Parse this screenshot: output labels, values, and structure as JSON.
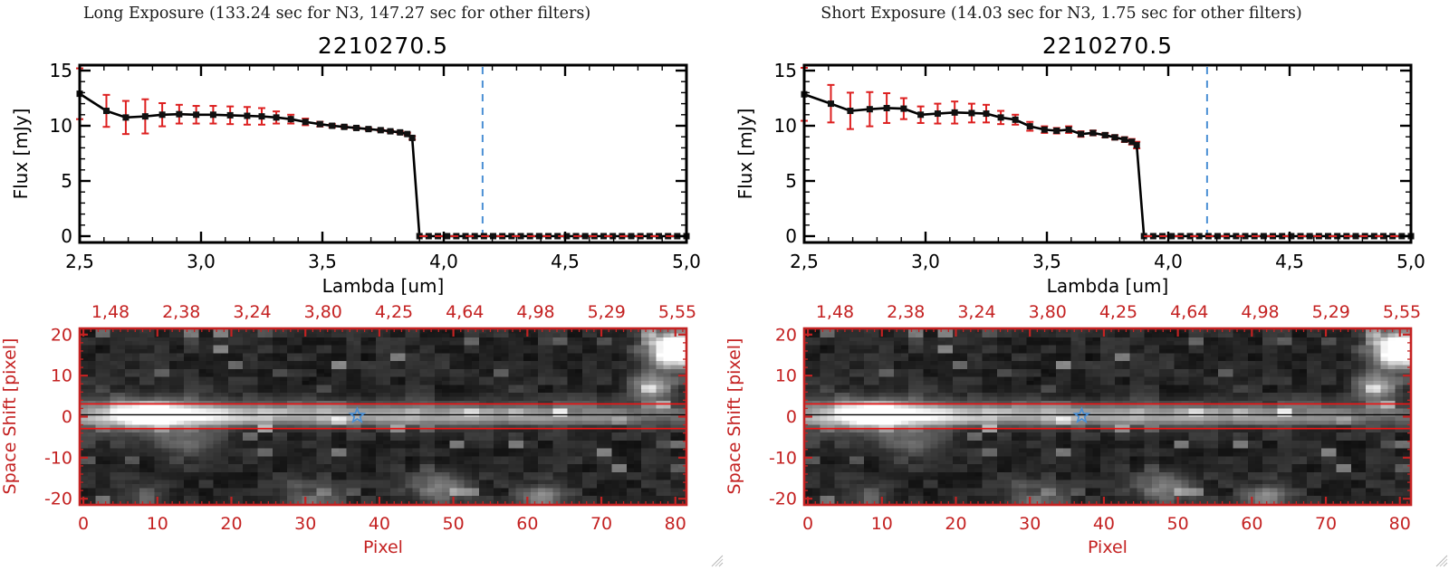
{
  "panels": [
    {
      "key": "long",
      "title": "Long Exposure (133.24 sec for N3, 147.27 sec for other filters)",
      "object_id": "2210270.5"
    },
    {
      "key": "short",
      "title": "Short Exposure (14.03 sec for N3, 1.75 sec for other filters)",
      "object_id": "2210270.5"
    }
  ],
  "colors": {
    "background": "#ffffff",
    "frame_black": "#000000",
    "data_line": "#000000",
    "marker_black": "#111111",
    "error_bar_red": "#dd2020",
    "zero_dash_red": "#ee2222",
    "guide_blue": "#4a8fd4",
    "image_axis_red": "#c42222",
    "aperture_line_red": "#f01515",
    "trace_line_black": "#000000",
    "star_blue": "#4a8fd4",
    "title_text": "#1a1a1a",
    "grip_gray": "#b5b5b5"
  },
  "chart_data": [
    {
      "type": "line",
      "panel": "long",
      "title": "2210270.5",
      "xlabel": "Lambda [um]",
      "ylabel": "Flux [mJy]",
      "xlim": [
        2.5,
        5.0
      ],
      "ylim": [
        0,
        15
      ],
      "x_ticks": [
        2.5,
        3.0,
        3.5,
        4.0,
        4.5,
        5.0
      ],
      "x_tick_labels": [
        "2,5",
        "3,0",
        "3,5",
        "4,0",
        "4,5",
        "5,0"
      ],
      "y_ticks": [
        0,
        5,
        10,
        15
      ],
      "y_tick_labels": [
        "0",
        "5",
        "10",
        "15"
      ],
      "marker": "filled-square",
      "legend": "none",
      "grid": false,
      "guide_blue_dashed_x": 4.16,
      "zero_red_dashed_from_x": 3.9,
      "points": [
        [
          2.5,
          12.9,
          2.3
        ],
        [
          2.61,
          11.35,
          1.45
        ],
        [
          2.69,
          10.75,
          1.5
        ],
        [
          2.77,
          10.85,
          1.55
        ],
        [
          2.84,
          11.0,
          1.05
        ],
        [
          2.91,
          11.05,
          0.85
        ],
        [
          2.98,
          11.0,
          0.8
        ],
        [
          3.05,
          11.0,
          0.8
        ],
        [
          3.12,
          10.95,
          0.8
        ],
        [
          3.19,
          10.9,
          0.8
        ],
        [
          3.25,
          10.85,
          0.75
        ],
        [
          3.31,
          10.75,
          0.55
        ],
        [
          3.37,
          10.6,
          0.4
        ],
        [
          3.43,
          10.35,
          0.3
        ],
        [
          3.49,
          10.15,
          0.22
        ],
        [
          3.54,
          10.0,
          0.16
        ],
        [
          3.59,
          9.9,
          0.13
        ],
        [
          3.64,
          9.8,
          0.11
        ],
        [
          3.69,
          9.7,
          0.1
        ],
        [
          3.74,
          9.6,
          0.1
        ],
        [
          3.78,
          9.5,
          0.1
        ],
        [
          3.82,
          9.4,
          0.1
        ],
        [
          3.85,
          9.25,
          0.12
        ],
        [
          3.87,
          8.9,
          0.15
        ]
      ],
      "zero_run": {
        "from": 3.9,
        "to": 5.0,
        "count": 30,
        "flux": 0,
        "err": 0.05
      }
    },
    {
      "type": "line",
      "panel": "short",
      "title": "2210270.5",
      "xlabel": "Lambda [um]",
      "ylabel": "Flux [mJy]",
      "xlim": [
        2.5,
        5.0
      ],
      "ylim": [
        0,
        15
      ],
      "x_ticks": [
        2.5,
        3.0,
        3.5,
        4.0,
        4.5,
        5.0
      ],
      "x_tick_labels": [
        "2,5",
        "3,0",
        "3,5",
        "4,0",
        "4,5",
        "5,0"
      ],
      "y_ticks": [
        0,
        5,
        10,
        15
      ],
      "y_tick_labels": [
        "0",
        "5",
        "10",
        "15"
      ],
      "marker": "filled-square",
      "legend": "none",
      "grid": false,
      "guide_blue_dashed_x": 4.16,
      "zero_red_dashed_from_x": 3.9,
      "points": [
        [
          2.5,
          12.85,
          2.4
        ],
        [
          2.61,
          12.0,
          1.7
        ],
        [
          2.69,
          11.35,
          1.65
        ],
        [
          2.77,
          11.5,
          1.55
        ],
        [
          2.84,
          11.6,
          1.35
        ],
        [
          2.91,
          11.55,
          0.95
        ],
        [
          2.98,
          11.0,
          0.75
        ],
        [
          3.05,
          11.1,
          0.9
        ],
        [
          3.12,
          11.2,
          1.0
        ],
        [
          3.19,
          11.15,
          0.85
        ],
        [
          3.25,
          11.1,
          0.8
        ],
        [
          3.31,
          10.75,
          0.6
        ],
        [
          3.37,
          10.55,
          0.45
        ],
        [
          3.43,
          9.95,
          0.4
        ],
        [
          3.49,
          9.65,
          0.3
        ],
        [
          3.54,
          9.55,
          0.25
        ],
        [
          3.59,
          9.65,
          0.3
        ],
        [
          3.64,
          9.25,
          0.25
        ],
        [
          3.69,
          9.35,
          0.22
        ],
        [
          3.74,
          9.15,
          0.2
        ],
        [
          3.78,
          8.95,
          0.2
        ],
        [
          3.82,
          8.75,
          0.22
        ],
        [
          3.85,
          8.55,
          0.25
        ],
        [
          3.87,
          8.25,
          0.3
        ]
      ],
      "zero_run": {
        "from": 3.9,
        "to": 5.0,
        "count": 30,
        "flux": 0,
        "err": 0.05
      }
    },
    {
      "type": "heatmap",
      "panel": "both",
      "xlabel": "Pixel",
      "ylabel": "Space Shift [pixel]",
      "x_range": [
        -0.5,
        81.5
      ],
      "y_range": [
        -21.5,
        21.5
      ],
      "x_ticks": [
        0,
        10,
        20,
        30,
        40,
        50,
        60,
        70,
        80
      ],
      "x_tick_labels": [
        "0",
        "10",
        "20",
        "30",
        "40",
        "50",
        "60",
        "70",
        "80"
      ],
      "y_ticks": [
        20,
        10,
        0,
        -10,
        -20
      ],
      "y_tick_labels": [
        "20",
        "10",
        "0",
        "-10",
        "-20"
      ],
      "top_wavelength_labels": [
        "1,48",
        "2,38",
        "3,24",
        "3,80",
        "4,25",
        "4,64",
        "4,98",
        "5,29",
        "5,55"
      ],
      "aperture_lines_y": [
        3.1,
        -2.9
      ],
      "trace_center_y": 0.45,
      "star_marker": {
        "x": 37,
        "y": 0.2
      }
    }
  ]
}
